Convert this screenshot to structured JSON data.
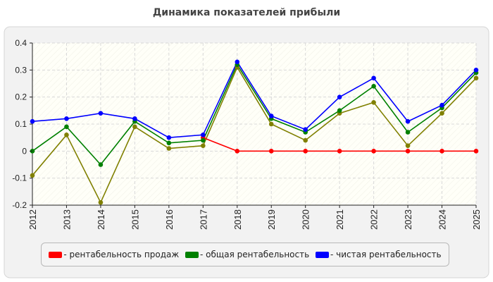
{
  "chart_data": {
    "type": "line",
    "title": "Динамика показателей прибыли",
    "categories": [
      "2012",
      "2013",
      "2014",
      "2015",
      "2016",
      "2017",
      "2018",
      "2019",
      "2020",
      "2021",
      "2022",
      "2023",
      "2024",
      "2025"
    ],
    "ylim": [
      -0.2,
      0.4
    ],
    "yticks": [
      "-0.2",
      "-0.1",
      "0",
      "0.1",
      "0.2",
      "0.3",
      "0.4"
    ],
    "grid": true,
    "legend_position": "bottom",
    "series": [
      {
        "color": "#808000",
        "values": [
          -0.09,
          0.06,
          -0.19,
          0.09,
          0.01,
          0.02,
          0.31,
          0.1,
          0.04,
          0.14,
          0.18,
          0.02,
          0.14,
          0.27
        ],
        "in_legend": false
      },
      {
        "name": "- рентабельность продаж",
        "color": "#ff0000",
        "values": [
          null,
          null,
          null,
          null,
          null,
          0.05,
          0,
          0,
          0,
          0,
          0,
          0,
          0,
          0
        ],
        "in_legend": true
      },
      {
        "name": "- общая рентабельность",
        "color": "#008000",
        "values": [
          0.0,
          0.09,
          -0.05,
          0.11,
          0.03,
          0.04,
          0.32,
          0.12,
          0.07,
          0.15,
          0.24,
          0.07,
          0.16,
          0.29
        ],
        "in_legend": true
      },
      {
        "name": "- чистая рентабельность",
        "color": "#0000ff",
        "values": [
          0.11,
          0.12,
          0.14,
          0.12,
          0.05,
          0.06,
          0.33,
          0.13,
          0.08,
          0.2,
          0.27,
          0.11,
          0.17,
          0.3
        ],
        "in_legend": true
      }
    ]
  },
  "legend_items": [
    {
      "label": "- рентабельность продаж",
      "color": "#ff0000"
    },
    {
      "label": "- общая рентабельность",
      "color": "#008000"
    },
    {
      "label": "- чистая рентабельность",
      "color": "#0000ff"
    }
  ]
}
